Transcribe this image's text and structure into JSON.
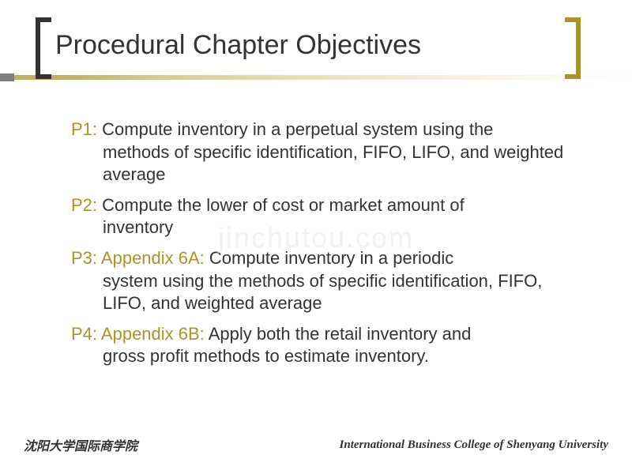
{
  "slide": {
    "title": "Procedural Chapter Objectives",
    "title_color": "#333333",
    "title_fontsize": 34,
    "bracket_left_color": "#333333",
    "bracket_right_color": "#ad9228",
    "line_gradient_start": "#c0b060",
    "line_gradient_end": "#ffffff",
    "background_color": "#ffffff"
  },
  "objectives": [
    {
      "label": "P1:",
      "text": " Compute inventory in a perpetual system using the",
      "continuation": "methods of specific identification, FIFO, LIFO, and weighted average"
    },
    {
      "label": "P2:",
      "text": " Compute the lower of cost or market amount of",
      "continuation": "inventory"
    },
    {
      "label": "P3: Appendix 6A:",
      "text": "  Compute inventory in a periodic",
      "continuation": "system using the methods of specific identification, FIFO, LIFO, and weighted average"
    },
    {
      "label": "P4: Appendix 6B:",
      "text": "  Apply both the retail inventory and",
      "continuation": "gross profit methods to estimate inventory."
    }
  ],
  "styling": {
    "label_color": "#ad9228",
    "text_color": "#333333",
    "body_fontsize": 22
  },
  "watermark": {
    "text": "jinchutou.com",
    "color": "#e8e8e8"
  },
  "footer": {
    "left": "沈阳大学国际商学院",
    "right": "International Business College of Shenyang University"
  }
}
